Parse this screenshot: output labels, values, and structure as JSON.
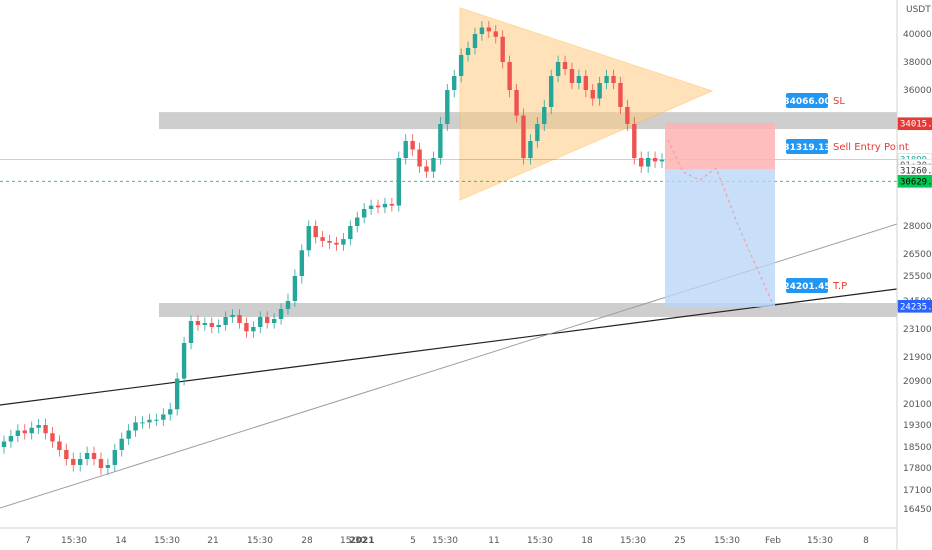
{
  "chart_data": {
    "type": "candlestick",
    "currency": "USDT",
    "y_ticks": [
      "40000.00",
      "38000.00",
      "36000.00",
      "28000.00",
      "26500.00",
      "25500.00",
      "24500.00",
      "23100.00",
      "21900.00",
      "20900.00",
      "20100.00",
      "19300.00",
      "18500.00",
      "17800.00",
      "17100.00",
      "16450.00"
    ],
    "x_ticks": [
      "7",
      "15:30",
      "14",
      "15:30",
      "21",
      "15:30",
      "28",
      "15:30",
      "2021",
      "5",
      "15:30",
      "11",
      "15:30",
      "18",
      "15:30",
      "25",
      "15:30",
      "Feb",
      "15:30",
      "8"
    ],
    "price_tags": [
      {
        "text": "34015.59",
        "bg": "#e53935",
        "fg": "#ffffff",
        "price": 34015.59
      },
      {
        "text": "31899.20",
        "bg": "#ffffff",
        "fg": "#26a69a",
        "price": 31899.2
      },
      {
        "text": "01:30:55",
        "bg": "#ffffff",
        "fg": "#555555",
        "price": 31580
      },
      {
        "text": "31260.99",
        "bg": "#ffffff",
        "fg": "#333333",
        "price": 31260.99
      },
      {
        "text": "30629.40",
        "bg": "#00c853",
        "fg": "#000000",
        "price": 30629.4
      },
      {
        "text": "24235.38",
        "bg": "#2962ff",
        "fg": "#ffffff",
        "price": 24235.38
      }
    ],
    "annotations": {
      "sl_value": "34066.00",
      "sl_text": "SL",
      "entry_value": "31319.13",
      "entry_text": "Sell Entry Point",
      "tp_value": "24201.45",
      "tp_text": "T.P"
    },
    "zones": [
      {
        "low": 33700,
        "high": 34700,
        "color": "#9e9e9e"
      },
      {
        "low": 23700,
        "high": 24400,
        "color": "#9e9e9e"
      }
    ],
    "colors": {
      "up": "#26a69a",
      "down": "#ef5350",
      "triangle": "#ffcc80",
      "stop": "#ffb3b3",
      "target": "#bbd6f7"
    },
    "series": {
      "open": [
        18500,
        18700,
        18900,
        19100,
        19000,
        19200,
        19300,
        19000,
        18700,
        18400,
        18100,
        17900,
        18100,
        18300,
        18100,
        17800,
        17900,
        18400,
        18800,
        19100,
        19400,
        19400,
        19500,
        19500,
        19700,
        19900,
        21000,
        22500,
        23500,
        23300,
        23400,
        23200,
        23300,
        23700,
        23800,
        23400,
        23000,
        23200,
        23700,
        23400,
        23600,
        24100,
        24500,
        25500,
        26700,
        28000,
        27400,
        27200,
        27100,
        27000,
        27300,
        28000,
        28500,
        29000,
        29200,
        29100,
        29300,
        29200,
        32000,
        33000,
        32500,
        31500,
        31200,
        32000,
        34000,
        36000,
        37000,
        38500,
        39000,
        40000,
        40500,
        40200,
        39800,
        38000,
        36000,
        34500,
        32000,
        33000,
        34000,
        35000,
        37000,
        38000,
        37500,
        36500,
        37000,
        36000,
        35500,
        36500,
        37000,
        36500,
        35000,
        34000,
        32000,
        31500,
        32000,
        31800
      ],
      "close": [
        18700,
        18900,
        19100,
        19000,
        19200,
        19300,
        19000,
        18700,
        18400,
        18100,
        17900,
        18100,
        18300,
        18100,
        17800,
        17900,
        18400,
        18800,
        19100,
        19400,
        19400,
        19500,
        19500,
        19700,
        19900,
        21000,
        22500,
        23500,
        23300,
        23400,
        23200,
        23300,
        23700,
        23800,
        23400,
        23000,
        23200,
        23700,
        23400,
        23600,
        24100,
        24500,
        25500,
        26700,
        28000,
        27400,
        27200,
        27100,
        27000,
        27300,
        28000,
        28500,
        29000,
        29200,
        29100,
        29300,
        29200,
        32000,
        33000,
        32500,
        31500,
        31200,
        32000,
        34000,
        36000,
        37000,
        38500,
        39000,
        40000,
        40500,
        40200,
        39800,
        38000,
        36000,
        34500,
        32000,
        33000,
        34000,
        35000,
        37000,
        38000,
        37500,
        36500,
        37000,
        36000,
        35500,
        36500,
        37000,
        36500,
        35000,
        34000,
        32000,
        31500,
        32000,
        31800,
        31900
      ]
    }
  }
}
